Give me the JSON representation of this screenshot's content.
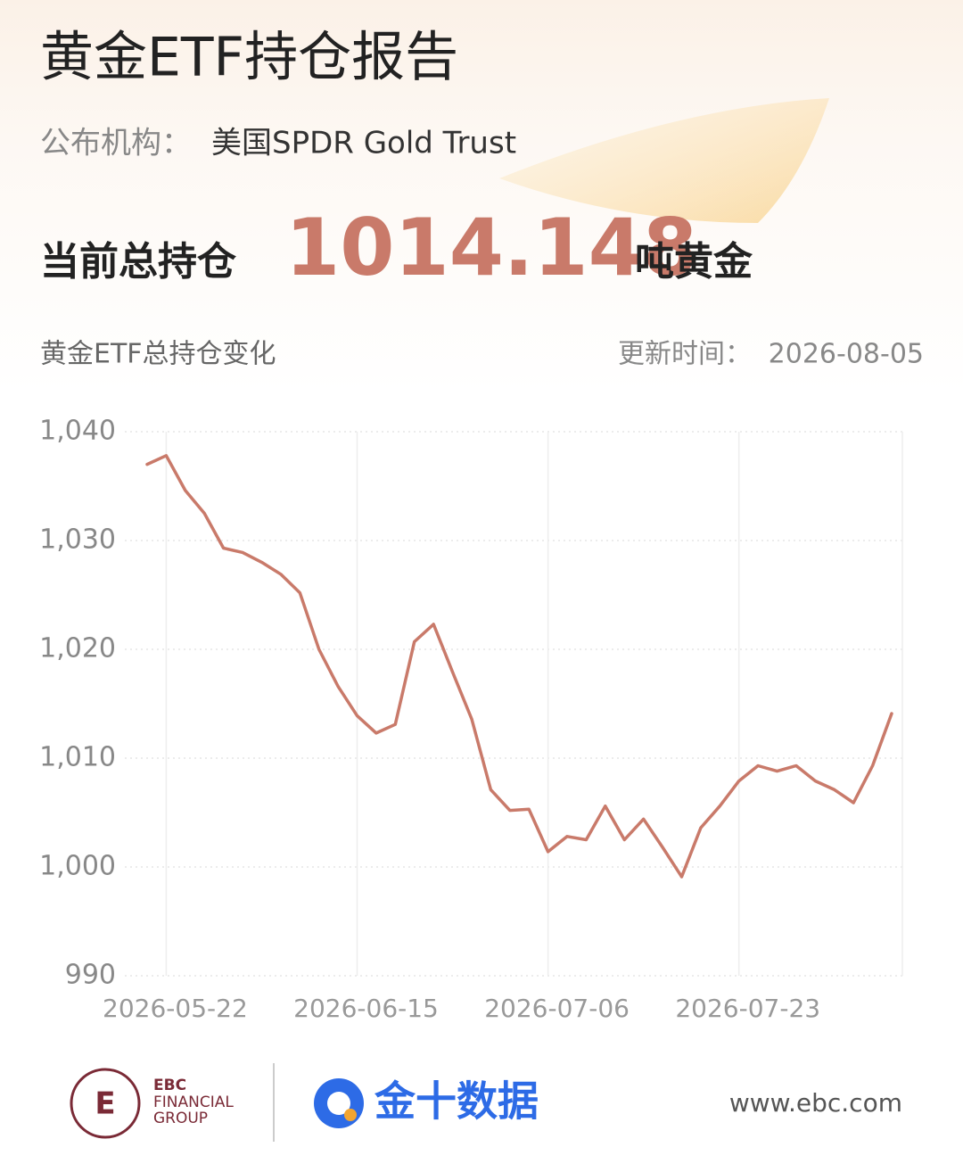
{
  "header": {
    "title": "黄金ETF持仓报告",
    "publisher_label": "公布机构：",
    "publisher": "美国SPDR Gold Trust",
    "holding_label": "当前总持仓",
    "holding_value": 1014.148,
    "holding_unit": "吨黄金",
    "chart_label": "黄金ETF总持仓变化",
    "update_label": "更新时间：",
    "update_date": "2026-08-05"
  },
  "chart_data": {
    "type": "line",
    "color": "#c97a6a",
    "categories": [
      null,
      "2026-05-22",
      null,
      null,
      null,
      null,
      null,
      null,
      null,
      null,
      null,
      "2026-06-15",
      null,
      null,
      null,
      null,
      null,
      null,
      null,
      null,
      null,
      "2026-07-06",
      null,
      null,
      null,
      null,
      null,
      null,
      null,
      null,
      null,
      "2026-07-23",
      null,
      null,
      null,
      null,
      null,
      null,
      null,
      null
    ],
    "values": [
      1037.0,
      1037.8,
      1034.6,
      1032.5,
      1029.3,
      1028.9,
      1028.0,
      1026.9,
      1025.2,
      1020.0,
      1016.6,
      1013.9,
      1012.3,
      1013.1,
      1020.7,
      1022.3,
      1017.9,
      1013.6,
      1007.1,
      1005.2,
      1005.3,
      1001.4,
      1002.8,
      1002.5,
      1005.6,
      1002.5,
      1004.4,
      1001.8,
      999.1,
      1003.6,
      1005.6,
      1007.9,
      1009.3,
      1008.8,
      1009.3,
      1007.9,
      1007.1,
      1005.9,
      1009.3,
      1014.1
    ],
    "ylim": [
      990,
      1040
    ],
    "yticks": [
      990,
      {
        "value": 1000,
        "label": "1,000"
      },
      {
        "value": 1010,
        "label": "1,010"
      },
      {
        "value": 1020,
        "label": "1,020"
      },
      {
        "value": 1030,
        "label": "1,030"
      },
      {
        "value": 1040,
        "label": "1,040"
      }
    ],
    "grid": true
  },
  "footer": {
    "brand_1": "EBC",
    "brand_2": "FINANCIAL",
    "brand_3": "GROUP",
    "brand_jin10": "金十数据",
    "website": "www.ebc.com"
  }
}
